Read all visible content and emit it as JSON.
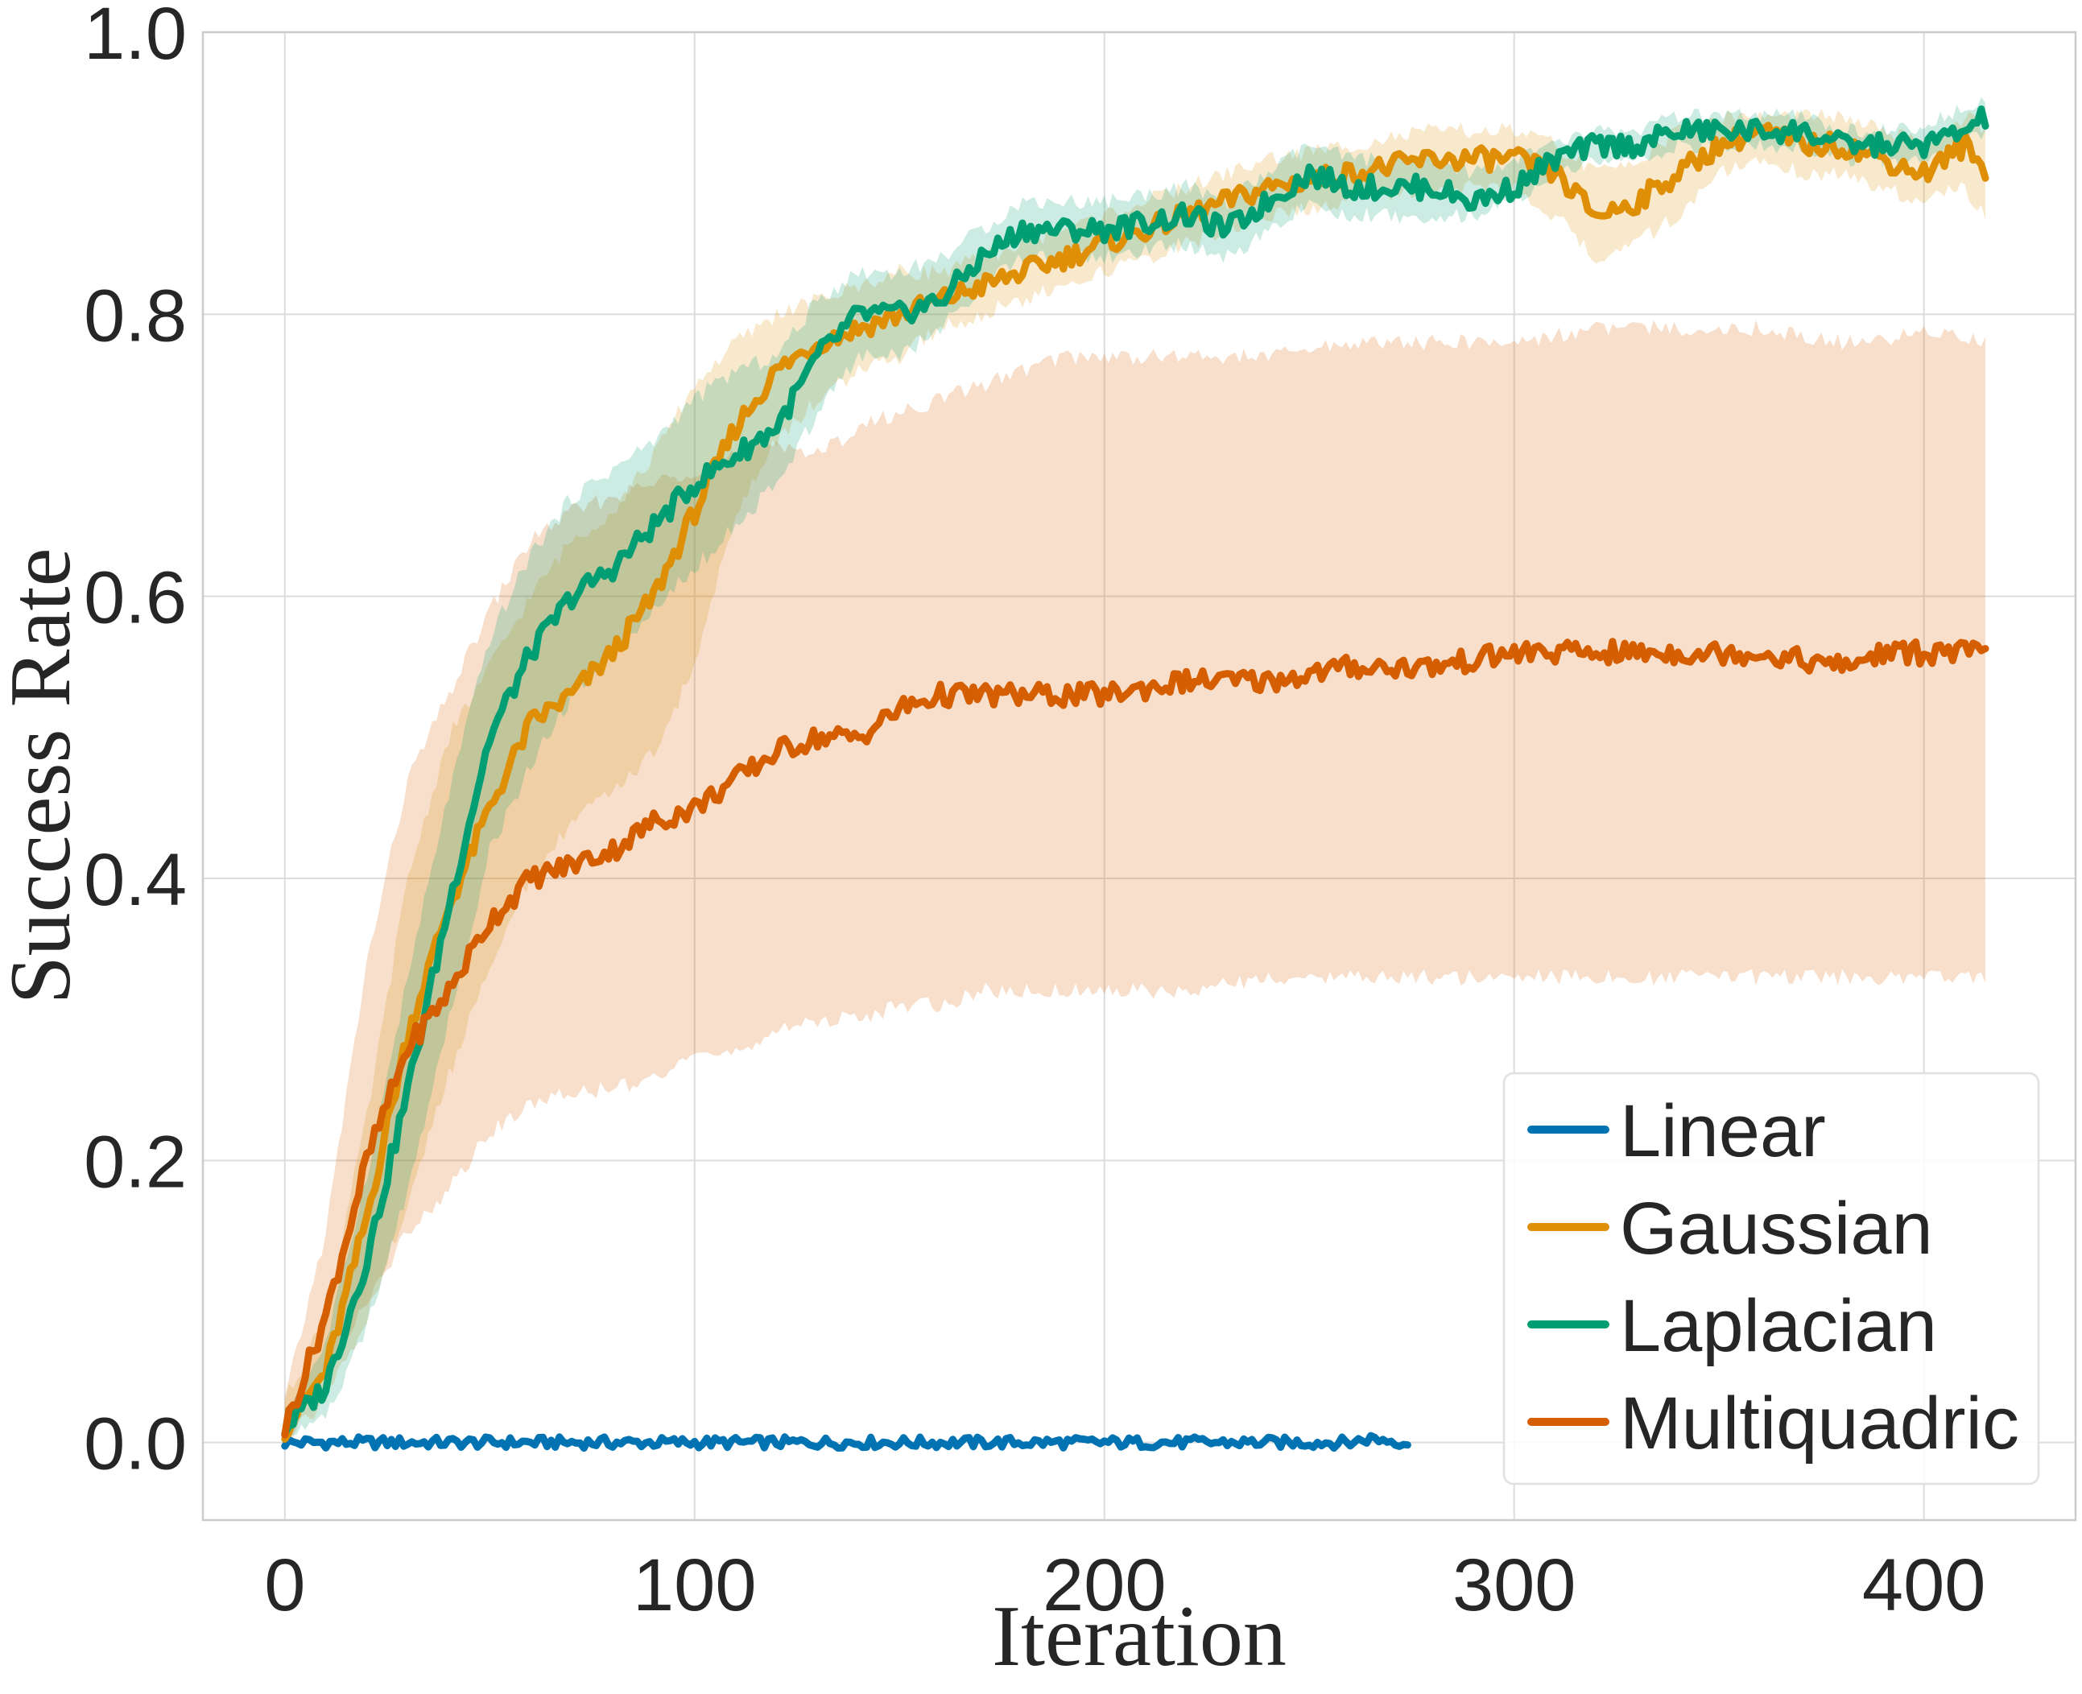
{
  "chart_data": {
    "type": "line",
    "title": "",
    "xlabel": "Iteration",
    "ylabel": "Success Rate",
    "xlim": [
      -20,
      437
    ],
    "ylim": [
      -0.055,
      1.0
    ],
    "xticks": [
      0,
      100,
      200,
      300,
      400
    ],
    "xtick_labels": [
      "0",
      "100",
      "200",
      "300",
      "400"
    ],
    "yticks": [
      0.0,
      0.2,
      0.4,
      0.6,
      0.8,
      1.0
    ],
    "ytick_labels": [
      "0.0",
      "0.2",
      "0.4",
      "0.6",
      "0.8",
      "1.0"
    ],
    "grid": true,
    "legend_position": "lower-right",
    "series": [
      {
        "name": "Linear",
        "color": "#0173b2",
        "x": [
          0,
          25,
          50,
          75,
          100,
          125,
          150,
          175,
          200,
          225,
          250,
          260,
          265,
          274
        ],
        "mean": [
          0.0,
          0.0,
          0.0,
          0.0,
          0.0,
          0.0,
          0.0,
          0.0,
          0.0,
          0.0,
          0.0,
          0.0,
          0.003,
          0.0
        ],
        "lower": [
          0.0,
          0.0,
          0.0,
          0.0,
          0.0,
          0.0,
          0.0,
          0.0,
          0.0,
          0.0,
          0.0,
          0.0,
          0.0,
          0.0
        ],
        "upper": [
          0.0,
          0.0,
          0.0,
          0.0,
          0.0,
          0.0,
          0.0,
          0.0,
          0.0,
          0.0,
          0.0,
          0.0,
          0.0,
          0.0
        ]
      },
      {
        "name": "Gaussian",
        "color": "#de8f05",
        "x": [
          0,
          10,
          20,
          30,
          40,
          50,
          60,
          70,
          80,
          90,
          100,
          110,
          120,
          130,
          140,
          150,
          160,
          170,
          180,
          200,
          220,
          240,
          260,
          280,
          300,
          310,
          320,
          330,
          340,
          350,
          360,
          370,
          380,
          390,
          400,
          410,
          415
        ],
        "mean": [
          0.01,
          0.05,
          0.16,
          0.29,
          0.38,
          0.45,
          0.51,
          0.53,
          0.56,
          0.6,
          0.66,
          0.72,
          0.76,
          0.78,
          0.79,
          0.8,
          0.81,
          0.82,
          0.83,
          0.85,
          0.87,
          0.89,
          0.9,
          0.91,
          0.91,
          0.9,
          0.87,
          0.88,
          0.9,
          0.92,
          0.93,
          0.92,
          0.92,
          0.91,
          0.9,
          0.92,
          0.9
        ],
        "lower": [
          0.0,
          0.03,
          0.09,
          0.17,
          0.26,
          0.34,
          0.4,
          0.44,
          0.46,
          0.49,
          0.55,
          0.66,
          0.71,
          0.74,
          0.76,
          0.77,
          0.79,
          0.8,
          0.81,
          0.83,
          0.85,
          0.87,
          0.88,
          0.89,
          0.89,
          0.87,
          0.84,
          0.85,
          0.87,
          0.9,
          0.91,
          0.9,
          0.9,
          0.89,
          0.88,
          0.89,
          0.87
        ],
        "upper": [
          0.03,
          0.09,
          0.23,
          0.4,
          0.5,
          0.55,
          0.6,
          0.64,
          0.66,
          0.7,
          0.75,
          0.78,
          0.8,
          0.81,
          0.82,
          0.83,
          0.83,
          0.84,
          0.85,
          0.87,
          0.89,
          0.91,
          0.92,
          0.93,
          0.93,
          0.92,
          0.9,
          0.91,
          0.93,
          0.94,
          0.94,
          0.94,
          0.94,
          0.93,
          0.92,
          0.94,
          0.93
        ]
      },
      {
        "name": "Laplacian",
        "color": "#029e73",
        "x": [
          0,
          10,
          20,
          30,
          40,
          50,
          60,
          70,
          80,
          90,
          100,
          110,
          120,
          130,
          140,
          150,
          160,
          170,
          180,
          200,
          220,
          230,
          240,
          250,
          260,
          270,
          280,
          290,
          300,
          310,
          320,
          330,
          340,
          350,
          360,
          370,
          380,
          390,
          400,
          410,
          415
        ],
        "mean": [
          0.01,
          0.04,
          0.13,
          0.25,
          0.38,
          0.5,
          0.56,
          0.6,
          0.62,
          0.65,
          0.68,
          0.7,
          0.72,
          0.77,
          0.8,
          0.8,
          0.81,
          0.84,
          0.86,
          0.86,
          0.87,
          0.86,
          0.88,
          0.9,
          0.89,
          0.89,
          0.89,
          0.88,
          0.89,
          0.91,
          0.92,
          0.92,
          0.93,
          0.93,
          0.93,
          0.93,
          0.92,
          0.92,
          0.92,
          0.93,
          0.94
        ],
        "lower": [
          0.0,
          0.02,
          0.08,
          0.18,
          0.3,
          0.42,
          0.48,
          0.53,
          0.56,
          0.59,
          0.62,
          0.65,
          0.68,
          0.73,
          0.77,
          0.77,
          0.79,
          0.82,
          0.84,
          0.84,
          0.85,
          0.84,
          0.86,
          0.88,
          0.87,
          0.87,
          0.87,
          0.87,
          0.88,
          0.9,
          0.91,
          0.91,
          0.92,
          0.92,
          0.92,
          0.92,
          0.91,
          0.91,
          0.91,
          0.92,
          0.93
        ],
        "upper": [
          0.02,
          0.07,
          0.19,
          0.33,
          0.46,
          0.57,
          0.63,
          0.67,
          0.69,
          0.71,
          0.74,
          0.76,
          0.77,
          0.81,
          0.83,
          0.83,
          0.84,
          0.86,
          0.88,
          0.88,
          0.89,
          0.88,
          0.9,
          0.92,
          0.91,
          0.91,
          0.91,
          0.9,
          0.91,
          0.92,
          0.93,
          0.93,
          0.94,
          0.94,
          0.94,
          0.94,
          0.93,
          0.93,
          0.93,
          0.95,
          0.95
        ]
      },
      {
        "name": "Multiquadric",
        "color": "#d55e00",
        "x": [
          0,
          10,
          20,
          30,
          40,
          50,
          60,
          70,
          80,
          90,
          100,
          110,
          120,
          130,
          140,
          150,
          160,
          170,
          180,
          190,
          200,
          220,
          240,
          260,
          280,
          300,
          320,
          340,
          360,
          380,
          390,
          400,
          415
        ],
        "mean": [
          0.01,
          0.09,
          0.2,
          0.28,
          0.32,
          0.37,
          0.4,
          0.41,
          0.42,
          0.44,
          0.45,
          0.47,
          0.49,
          0.5,
          0.5,
          0.52,
          0.53,
          0.53,
          0.53,
          0.53,
          0.53,
          0.54,
          0.54,
          0.55,
          0.55,
          0.56,
          0.56,
          0.56,
          0.56,
          0.55,
          0.56,
          0.56,
          0.56
        ],
        "lower": [
          0.0,
          0.05,
          0.1,
          0.15,
          0.18,
          0.22,
          0.24,
          0.25,
          0.25,
          0.26,
          0.27,
          0.28,
          0.29,
          0.3,
          0.3,
          0.31,
          0.31,
          0.32,
          0.32,
          0.32,
          0.32,
          0.32,
          0.33,
          0.33,
          0.33,
          0.33,
          0.33,
          0.33,
          0.33,
          0.33,
          0.33,
          0.33,
          0.33
        ],
        "upper": [
          0.03,
          0.15,
          0.34,
          0.47,
          0.53,
          0.59,
          0.64,
          0.66,
          0.67,
          0.68,
          0.69,
          0.7,
          0.71,
          0.7,
          0.72,
          0.73,
          0.74,
          0.75,
          0.76,
          0.77,
          0.77,
          0.77,
          0.77,
          0.78,
          0.78,
          0.78,
          0.79,
          0.79,
          0.79,
          0.78,
          0.78,
          0.79,
          0.78
        ]
      }
    ]
  }
}
